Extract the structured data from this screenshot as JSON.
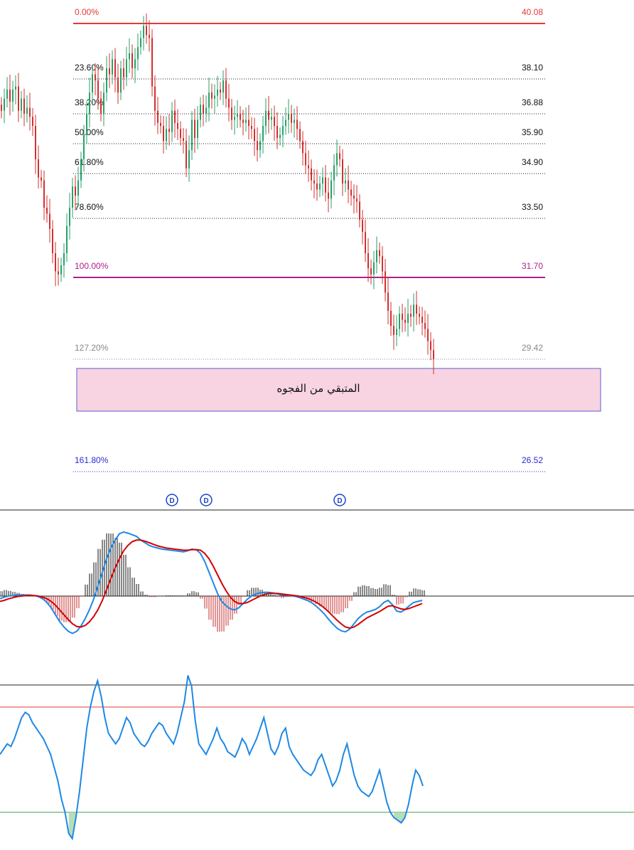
{
  "chart_data": {
    "type": "candlestick",
    "price_panel": {
      "fibonacci_levels": [
        {
          "pct": "0.00%",
          "price": "40.08",
          "color": "#e53935",
          "style": "solid"
        },
        {
          "pct": "23.60%",
          "price": "38.10",
          "color": "#222222",
          "style": "dotted"
        },
        {
          "pct": "38.20%",
          "price": "36.88",
          "color": "#222222",
          "style": "dotted"
        },
        {
          "pct": "50.00%",
          "price": "35.90",
          "color": "#222222",
          "style": "dotted"
        },
        {
          "pct": "61.80%",
          "price": "34.90",
          "color": "#222222",
          "style": "dotted"
        },
        {
          "pct": "78.60%",
          "price": "33.50",
          "color": "#222222",
          "style": "dotted"
        },
        {
          "pct": "100.00%",
          "price": "31.70",
          "color": "#b0208a",
          "style": "solid"
        },
        {
          "pct": "127.20%",
          "price": "29.42",
          "color": "#888888",
          "style": "dotted"
        },
        {
          "pct": "161.80%",
          "price": "26.52",
          "color": "#2b2bd6",
          "style": "dotted"
        }
      ],
      "gap_zone": {
        "label": "المتبقي من الفجوه",
        "price_top": 29.3,
        "price_bottom": 28.8,
        "fill": "#f8d4e2",
        "border": "#5b5bd6"
      },
      "dividend_markers": [
        {
          "label": "D",
          "bar": 60
        },
        {
          "label": "D",
          "bar": 72
        },
        {
          "label": "D",
          "bar": 119
        }
      ],
      "close_series": [
        37.2,
        37.6,
        37.9,
        37.5,
        37.9,
        38.0,
        37.2,
        37.6,
        37.1,
        37.3,
        37.0,
        36.7,
        35.6,
        35.0,
        34.9,
        34.0,
        33.8,
        33.3,
        32.5,
        31.9,
        31.8,
        32.1,
        32.5,
        33.4,
        34.0,
        34.7,
        34.4,
        34.9,
        35.6,
        36.4,
        37.1,
        37.8,
        38.4,
        38.2,
        37.6,
        37.1,
        37.8,
        38.6,
        38.4,
        38.9,
        38.3,
        37.8,
        38.6,
        38.3,
        38.9,
        39.1,
        38.6,
        38.9,
        39.3,
        39.6,
        40.0,
        39.7,
        39.6,
        38.0,
        37.2,
        36.8,
        36.7,
        36.2,
        36.6,
        36.5,
        37.2,
        36.8,
        36.6,
        36.3,
        36.2,
        35.3,
        35.9,
        36.9,
        36.3,
        36.9,
        37.4,
        37.1,
        37.3,
        37.8,
        37.6,
        37.7,
        37.9,
        37.8,
        38.2,
        37.6,
        37.3,
        36.9,
        37.0,
        37.1,
        36.9,
        36.8,
        36.9,
        36.7,
        36.6,
        36.2,
        35.9,
        36.2,
        36.7,
        37.2,
        36.9,
        37.0,
        36.7,
        36.3,
        36.4,
        36.7,
        36.9,
        37.1,
        36.8,
        36.9,
        36.6,
        36.2,
        35.8,
        35.4,
        35.3,
        34.9,
        34.8,
        34.6,
        34.8,
        35.0,
        34.5,
        34.3,
        34.9,
        35.4,
        35.8,
        35.6,
        34.8,
        34.9,
        34.6,
        34.4,
        34.3,
        34.2,
        33.6,
        33.2,
        32.5,
        32.0,
        31.8,
        32.2,
        32.6,
        32.4,
        31.9,
        31.2,
        30.6,
        30.1,
        29.8,
        30.0,
        30.5,
        30.3,
        30.2,
        30.5,
        30.4,
        30.8,
        30.5,
        30.4,
        30.2,
        30.0,
        29.6,
        29.3,
        29.0
      ]
    },
    "macd_panel": {
      "macd_line": [
        -0.05,
        -0.02,
        0.0,
        0.01,
        0.02,
        0.02,
        0.02,
        0.02,
        0.01,
        -0.01,
        -0.05,
        -0.12,
        -0.22,
        -0.35,
        -0.48,
        -0.58,
        -0.66,
        -0.7,
        -0.66,
        -0.56,
        -0.42,
        -0.25,
        -0.05,
        0.2,
        0.45,
        0.7,
        0.9,
        1.05,
        1.17,
        1.2,
        1.18,
        1.15,
        1.12,
        1.05,
        1.0,
        0.95,
        0.92,
        0.9,
        0.88,
        0.87,
        0.86,
        0.85,
        0.84,
        0.83,
        0.85,
        0.88,
        0.87,
        0.8,
        0.65,
        0.45,
        0.25,
        0.05,
        -0.1,
        -0.18,
        -0.24,
        -0.26,
        -0.22,
        -0.14,
        -0.06,
        0.0,
        0.04,
        0.06,
        0.07,
        0.07,
        0.06,
        0.04,
        0.02,
        0.02,
        0.01,
        0.0,
        -0.02,
        -0.05,
        -0.08,
        -0.12,
        -0.18,
        -0.25,
        -0.33,
        -0.43,
        -0.52,
        -0.6,
        -0.65,
        -0.67,
        -0.62,
        -0.52,
        -0.42,
        -0.35,
        -0.3,
        -0.28,
        -0.25,
        -0.2,
        -0.12,
        -0.08,
        -0.16,
        -0.28,
        -0.3,
        -0.25,
        -0.18,
        -0.12,
        -0.1,
        -0.08
      ],
      "signal_line": [
        -0.1,
        -0.08,
        -0.05,
        -0.03,
        -0.01,
        0.0,
        0.01,
        0.01,
        0.01,
        0.0,
        -0.02,
        -0.05,
        -0.1,
        -0.17,
        -0.26,
        -0.35,
        -0.44,
        -0.52,
        -0.57,
        -0.58,
        -0.55,
        -0.48,
        -0.38,
        -0.25,
        -0.08,
        0.12,
        0.33,
        0.53,
        0.7,
        0.85,
        0.95,
        1.02,
        1.05,
        1.05,
        1.03,
        1.0,
        0.97,
        0.94,
        0.92,
        0.9,
        0.89,
        0.88,
        0.87,
        0.86,
        0.86,
        0.87,
        0.87,
        0.86,
        0.8,
        0.7,
        0.56,
        0.4,
        0.24,
        0.1,
        -0.02,
        -0.1,
        -0.14,
        -0.14,
        -0.12,
        -0.08,
        -0.04,
        0.0,
        0.03,
        0.05,
        0.05,
        0.05,
        0.04,
        0.03,
        0.02,
        0.01,
        0.0,
        -0.02,
        -0.04,
        -0.07,
        -0.11,
        -0.16,
        -0.22,
        -0.29,
        -0.37,
        -0.45,
        -0.52,
        -0.58,
        -0.6,
        -0.58,
        -0.53,
        -0.47,
        -0.41,
        -0.37,
        -0.33,
        -0.29,
        -0.24,
        -0.19,
        -0.18,
        -0.21,
        -0.24,
        -0.25,
        -0.23,
        -0.2,
        -0.17,
        -0.14
      ],
      "signal_color": "#d50000",
      "macd_color": "#1e88e5"
    },
    "rsi_panel": {
      "values": [
        52,
        54,
        56,
        55,
        58,
        62,
        66,
        68,
        67,
        64,
        62,
        60,
        58,
        55,
        52,
        47,
        42,
        35,
        30,
        22,
        20,
        28,
        38,
        50,
        62,
        70,
        76,
        80,
        74,
        66,
        60,
        58,
        56,
        58,
        62,
        66,
        64,
        60,
        58,
        56,
        55,
        57,
        60,
        62,
        64,
        63,
        60,
        58,
        56,
        60,
        66,
        72,
        82,
        78,
        65,
        56,
        54,
        52,
        55,
        58,
        62,
        58,
        56,
        53,
        52,
        51,
        54,
        58,
        56,
        52,
        55,
        58,
        62,
        66,
        60,
        54,
        52,
        55,
        60,
        62,
        55,
        52,
        50,
        48,
        46,
        45,
        44,
        46,
        50,
        52,
        48,
        44,
        40,
        42,
        46,
        52,
        56,
        50,
        44,
        40,
        38,
        37,
        36,
        38,
        42,
        46,
        40,
        34,
        30,
        28,
        27,
        26,
        28,
        33,
        40,
        46,
        44,
        40
      ],
      "upper_line": 70,
      "lower_line": 30,
      "upper_color": "#e53935",
      "lower_color": "#43a047"
    }
  }
}
